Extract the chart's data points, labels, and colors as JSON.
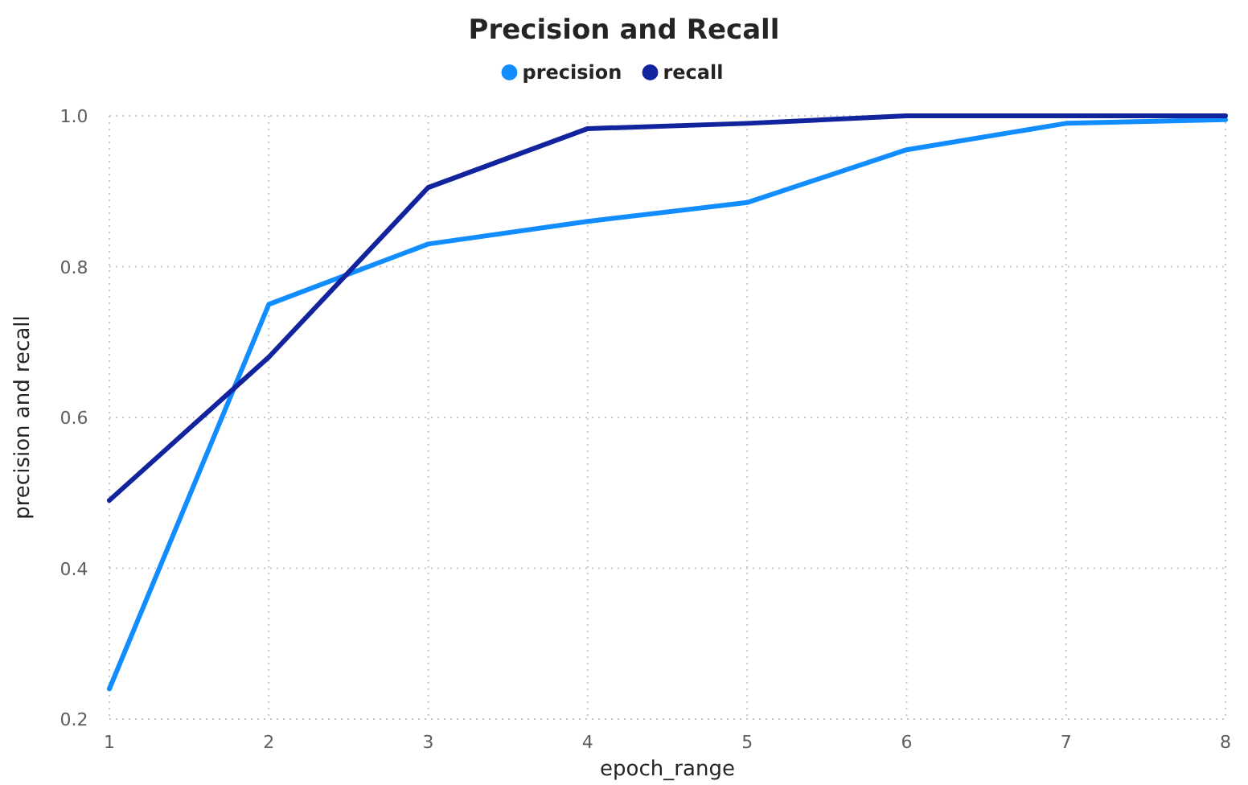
{
  "chart_data": {
    "type": "line",
    "title": "Precision and Recall",
    "xlabel": "epoch_range",
    "ylabel": "precision and recall",
    "x": [
      1,
      2,
      3,
      4,
      5,
      6,
      7,
      8
    ],
    "series": [
      {
        "name": "precision",
        "color": "#118dff",
        "values": [
          0.24,
          0.75,
          0.83,
          0.86,
          0.885,
          0.955,
          0.99,
          0.995
        ]
      },
      {
        "name": "recall",
        "color": "#12239e",
        "values": [
          0.49,
          0.68,
          0.905,
          0.983,
          0.99,
          1.0,
          1.0,
          1.0
        ]
      }
    ],
    "xlim": [
      1,
      8
    ],
    "xticks": [
      1,
      2,
      3,
      4,
      5,
      6,
      7,
      8
    ],
    "ylim": [
      0.2,
      1.0
    ],
    "yticks": [
      {
        "value": 0.2,
        "label": "0.2"
      },
      {
        "value": 0.4,
        "label": "0.4"
      },
      {
        "value": 0.6,
        "label": "0.6"
      },
      {
        "value": 0.8,
        "label": "0.8"
      },
      {
        "value": 1.0,
        "label": "1.0"
      }
    ],
    "grid": true,
    "legend": "top",
    "marker": "none",
    "line_style": "solid"
  }
}
